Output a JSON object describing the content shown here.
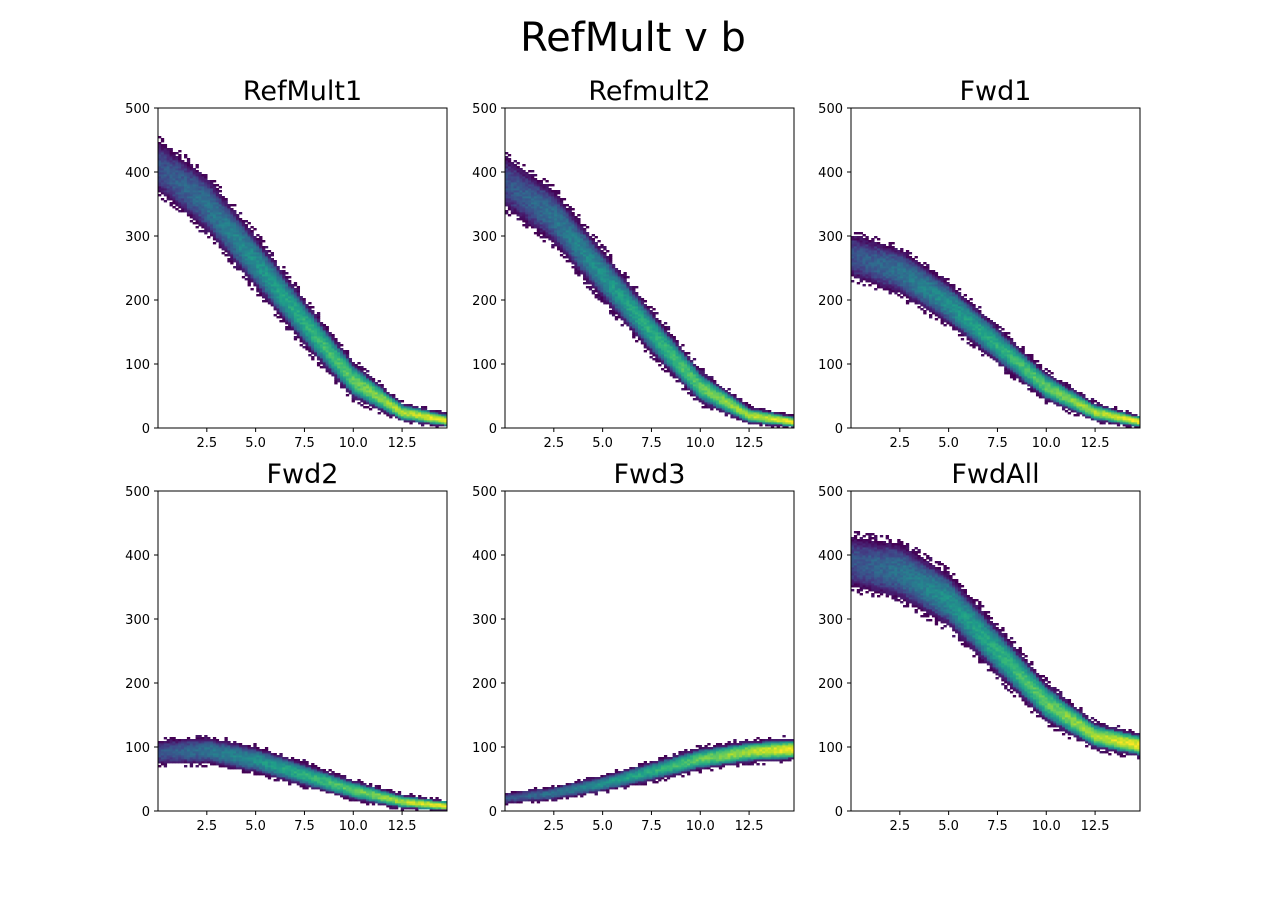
{
  "figure": {
    "title": "RefMult v b"
  },
  "chart_data": [
    {
      "type": "heatmap",
      "title": "RefMult1",
      "xlim": [
        0,
        14.8
      ],
      "ylim": [
        0,
        500
      ],
      "xticks": [
        2.5,
        5.0,
        7.5,
        10.0,
        12.5
      ],
      "xtick_labels": [
        "2.5",
        "5.0",
        "7.5",
        "10.0",
        "12.5"
      ],
      "yticks": [
        0,
        100,
        200,
        300,
        400,
        500
      ],
      "ytick_labels": [
        "0",
        "100",
        "200",
        "300",
        "400",
        "500"
      ],
      "colormap": "viridis",
      "band_center": [
        [
          0,
          410
        ],
        [
          2.5,
          350
        ],
        [
          5.0,
          260
        ],
        [
          7.5,
          165
        ],
        [
          10.0,
          75
        ],
        [
          12.5,
          25
        ],
        [
          14.8,
          12
        ]
      ],
      "band_halfwidth": [
        [
          0,
          38
        ],
        [
          2.5,
          42
        ],
        [
          5.0,
          40
        ],
        [
          7.5,
          35
        ],
        [
          10.0,
          28
        ],
        [
          12.5,
          14
        ],
        [
          14.8,
          10
        ]
      ]
    },
    {
      "type": "heatmap",
      "title": "Refmult2",
      "xlim": [
        0,
        14.8
      ],
      "ylim": [
        0,
        500
      ],
      "xticks": [
        2.5,
        5.0,
        7.5,
        10.0,
        12.5
      ],
      "xtick_labels": [
        "2.5",
        "5.0",
        "7.5",
        "10.0",
        "12.5"
      ],
      "yticks": [
        0,
        100,
        200,
        300,
        400,
        500
      ],
      "ytick_labels": [
        "0",
        "100",
        "200",
        "300",
        "400",
        "500"
      ],
      "colormap": "viridis",
      "band_center": [
        [
          0,
          385
        ],
        [
          2.5,
          330
        ],
        [
          5.0,
          240
        ],
        [
          7.5,
          150
        ],
        [
          10.0,
          65
        ],
        [
          12.5,
          20
        ],
        [
          14.8,
          10
        ]
      ],
      "band_halfwidth": [
        [
          0,
          38
        ],
        [
          2.5,
          40
        ],
        [
          5.0,
          38
        ],
        [
          7.5,
          33
        ],
        [
          10.0,
          25
        ],
        [
          12.5,
          13
        ],
        [
          14.8,
          9
        ]
      ]
    },
    {
      "type": "heatmap",
      "title": "Fwd1",
      "xlim": [
        0,
        14.8
      ],
      "ylim": [
        0,
        500
      ],
      "xticks": [
        2.5,
        5.0,
        7.5,
        10.0,
        12.5
      ],
      "xtick_labels": [
        "2.5",
        "5.0",
        "7.5",
        "10.0",
        "12.5"
      ],
      "yticks": [
        0,
        100,
        200,
        300,
        400,
        500
      ],
      "ytick_labels": [
        "0",
        "100",
        "200",
        "300",
        "400",
        "500"
      ],
      "colormap": "viridis",
      "band_center": [
        [
          0,
          270
        ],
        [
          2.5,
          245
        ],
        [
          5.0,
          195
        ],
        [
          7.5,
          130
        ],
        [
          10.0,
          65
        ],
        [
          12.5,
          25
        ],
        [
          14.8,
          10
        ]
      ],
      "band_halfwidth": [
        [
          0,
          32
        ],
        [
          2.5,
          34
        ],
        [
          5.0,
          32
        ],
        [
          7.5,
          28
        ],
        [
          10.0,
          22
        ],
        [
          12.5,
          14
        ],
        [
          14.8,
          9
        ]
      ]
    },
    {
      "type": "heatmap",
      "title": "Fwd2",
      "xlim": [
        0,
        14.8
      ],
      "ylim": [
        0,
        500
      ],
      "xticks": [
        2.5,
        5.0,
        7.5,
        10.0,
        12.5
      ],
      "xtick_labels": [
        "2.5",
        "5.0",
        "7.5",
        "10.0",
        "12.5"
      ],
      "yticks": [
        0,
        100,
        200,
        300,
        400,
        500
      ],
      "ytick_labels": [
        "0",
        "100",
        "200",
        "300",
        "400",
        "500"
      ],
      "colormap": "viridis",
      "band_center": [
        [
          0,
          92
        ],
        [
          2.5,
          95
        ],
        [
          5.0,
          80
        ],
        [
          7.5,
          57
        ],
        [
          10.0,
          33
        ],
        [
          12.5,
          15
        ],
        [
          14.8,
          8
        ]
      ],
      "band_halfwidth": [
        [
          0,
          18
        ],
        [
          2.5,
          20
        ],
        [
          5.0,
          20
        ],
        [
          7.5,
          18
        ],
        [
          10.0,
          15
        ],
        [
          12.5,
          11
        ],
        [
          14.8,
          8
        ]
      ]
    },
    {
      "type": "heatmap",
      "title": "Fwd3",
      "xlim": [
        0,
        14.8
      ],
      "ylim": [
        0,
        500
      ],
      "xticks": [
        2.5,
        5.0,
        7.5,
        10.0,
        12.5
      ],
      "xtick_labels": [
        "2.5",
        "5.0",
        "7.5",
        "10.0",
        "12.5"
      ],
      "yticks": [
        0,
        100,
        200,
        300,
        400,
        500
      ],
      "ytick_labels": [
        "0",
        "100",
        "200",
        "300",
        "400",
        "500"
      ],
      "colormap": "viridis",
      "band_center": [
        [
          0,
          20
        ],
        [
          2.5,
          28
        ],
        [
          5.0,
          43
        ],
        [
          7.5,
          62
        ],
        [
          10.0,
          82
        ],
        [
          12.5,
          93
        ],
        [
          14.8,
          97
        ]
      ],
      "band_halfwidth": [
        [
          0,
          8
        ],
        [
          2.5,
          10
        ],
        [
          5.0,
          12
        ],
        [
          7.5,
          15
        ],
        [
          10.0,
          17
        ],
        [
          12.5,
          17
        ],
        [
          14.8,
          17
        ]
      ]
    },
    {
      "type": "heatmap",
      "title": "FwdAll",
      "xlim": [
        0,
        14.8
      ],
      "ylim": [
        0,
        500
      ],
      "xticks": [
        2.5,
        5.0,
        7.5,
        10.0,
        12.5
      ],
      "xtick_labels": [
        "2.5",
        "5.0",
        "7.5",
        "10.0",
        "12.5"
      ],
      "yticks": [
        0,
        100,
        200,
        300,
        400,
        500
      ],
      "ytick_labels": [
        "0",
        "100",
        "200",
        "300",
        "400",
        "500"
      ],
      "colormap": "viridis",
      "band_center": [
        [
          0,
          390
        ],
        [
          2.5,
          375
        ],
        [
          5.0,
          330
        ],
        [
          7.5,
          250
        ],
        [
          10.0,
          170
        ],
        [
          12.5,
          118
        ],
        [
          14.8,
          103
        ]
      ],
      "band_halfwidth": [
        [
          0,
          38
        ],
        [
          2.5,
          42
        ],
        [
          5.0,
          40
        ],
        [
          7.5,
          37
        ],
        [
          10.0,
          30
        ],
        [
          12.5,
          20
        ],
        [
          14.8,
          18
        ]
      ]
    }
  ]
}
